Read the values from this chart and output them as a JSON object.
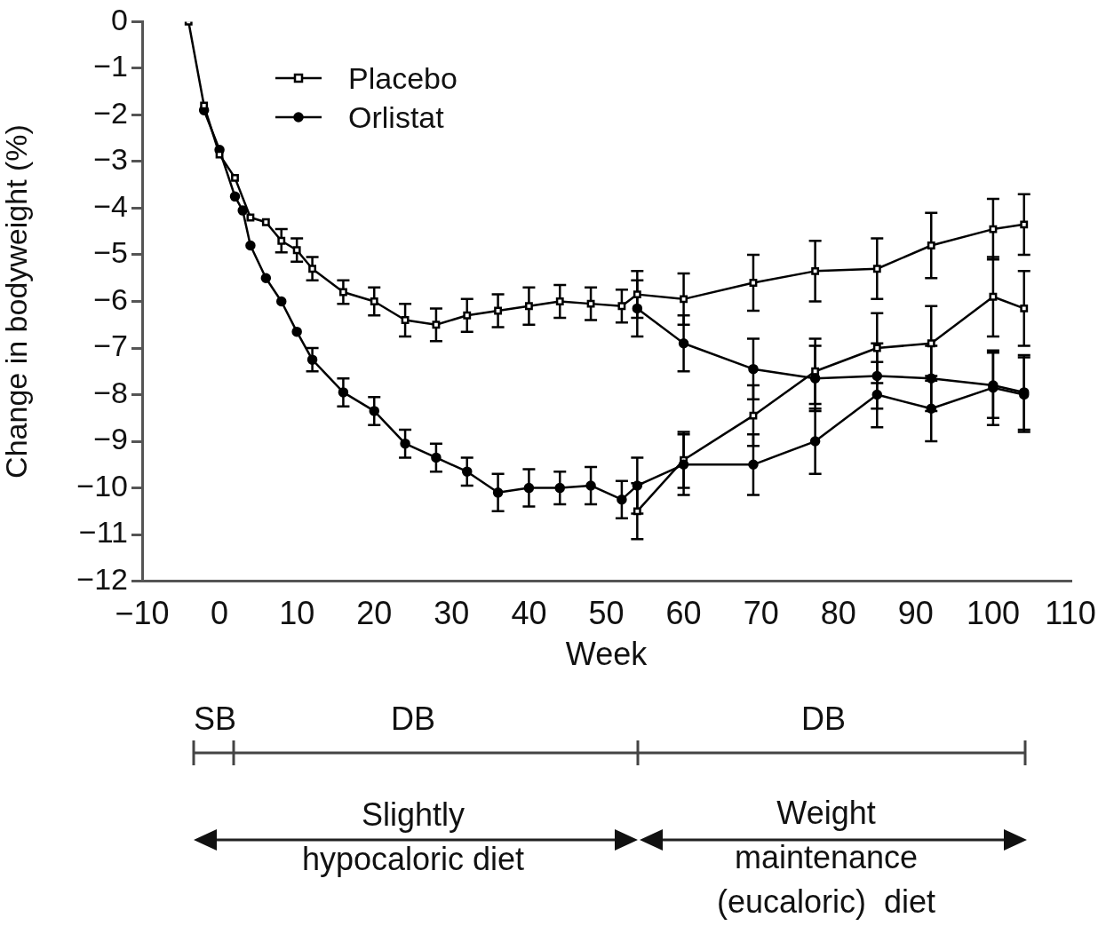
{
  "chart_data": {
    "type": "line",
    "xlabel": "Week",
    "ylabel": "Change in bodyweight (%)",
    "xlim": [
      -10,
      110
    ],
    "xticks": [
      -10,
      0,
      10,
      20,
      30,
      40,
      50,
      60,
      70,
      80,
      90,
      100,
      110
    ],
    "ylim": [
      -12,
      0
    ],
    "yticks": [
      -12,
      -11,
      -10,
      -9,
      -8,
      -7,
      -6,
      -5,
      -4,
      -3,
      -2,
      -1,
      0
    ],
    "grid": false,
    "legend": "top left",
    "line_style": "solid",
    "series": [
      {
        "name": "Placebo",
        "color": "#000000",
        "marker": "square",
        "x": [
          -4,
          -2,
          0,
          2,
          4,
          6,
          8,
          10,
          12,
          16,
          20,
          24,
          28,
          32,
          36,
          40,
          44,
          48,
          52,
          54,
          60,
          69,
          77,
          85,
          92,
          100,
          104
        ],
        "values": [
          0,
          -1.8,
          -2.85,
          -3.35,
          -4.2,
          -4.3,
          -4.7,
          -4.9,
          -5.3,
          -5.8,
          -6.0,
          -6.4,
          -6.5,
          -6.3,
          -6.2,
          -6.1,
          -6.0,
          -6.05,
          -6.1,
          -5.85,
          -5.95,
          -5.6,
          -5.35,
          -5.3,
          -4.8,
          -4.45,
          -4.35
        ],
        "errors": [
          null,
          null,
          null,
          null,
          null,
          null,
          0.25,
          0.25,
          0.25,
          0.25,
          0.3,
          0.35,
          0.35,
          0.35,
          0.35,
          0.4,
          0.35,
          0.35,
          0.35,
          0.5,
          0.55,
          0.6,
          0.65,
          0.65,
          0.7,
          0.65,
          0.65
        ]
      },
      {
        "name": "Orlistat",
        "color": "#000000",
        "marker": "circle",
        "x": [
          -2,
          0,
          2,
          3,
          4,
          6,
          8,
          10,
          12,
          16,
          20,
          24,
          28,
          32,
          36,
          40,
          44,
          48,
          52,
          54,
          60,
          69,
          77,
          85,
          92,
          100,
          104
        ],
        "values": [
          -1.9,
          -2.75,
          -3.75,
          -4.05,
          -4.8,
          -5.5,
          -6.0,
          -6.65,
          -7.25,
          -7.95,
          -8.35,
          -9.05,
          -9.35,
          -9.65,
          -10.1,
          -10.0,
          -10.0,
          -9.95,
          -10.25,
          -9.95,
          -9.5,
          -9.5,
          -9.0,
          -8.0,
          -8.3,
          -7.85,
          -8.0
        ],
        "errors": [
          null,
          null,
          null,
          null,
          null,
          null,
          null,
          null,
          0.25,
          0.3,
          0.3,
          0.3,
          0.3,
          0.3,
          0.4,
          0.4,
          0.35,
          0.4,
          0.4,
          0.6,
          0.65,
          0.65,
          0.7,
          0.7,
          0.7,
          0.8,
          0.8
        ]
      },
      {
        "color": "#000000",
        "marker": "circle",
        "x": [
          54,
          60,
          69,
          77,
          85,
          92,
          100,
          104
        ],
        "values": [
          -6.15,
          -6.9,
          -7.45,
          -7.65,
          -7.6,
          -7.65,
          -7.8,
          -7.95
        ],
        "errors": [
          0.6,
          0.6,
          0.65,
          0.7,
          0.7,
          0.7,
          0.7,
          0.8
        ]
      },
      {
        "color": "#000000",
        "marker": "square",
        "x": [
          54,
          60,
          69,
          77,
          85,
          92,
          100,
          104
        ],
        "values": [
          -10.5,
          -9.4,
          -8.45,
          -7.5,
          -7.0,
          -6.9,
          -5.9,
          -6.15
        ],
        "errors": [
          0.6,
          0.6,
          0.65,
          0.7,
          0.75,
          0.8,
          0.85,
          0.8
        ]
      }
    ],
    "annotations": [
      "SB",
      "DB",
      "DB",
      "Slightly\nhypocaloric diet",
      "Weight\nmaintenance\n(eucaloric)  diet"
    ]
  }
}
